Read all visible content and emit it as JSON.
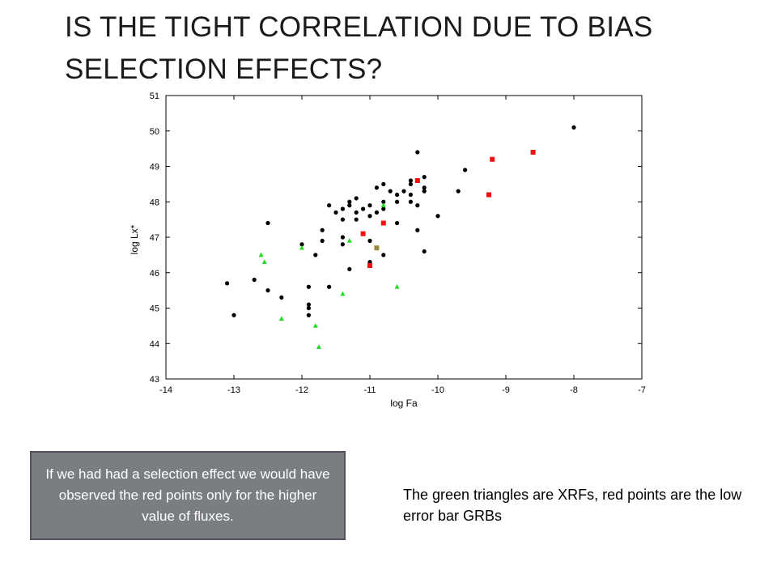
{
  "slide": {
    "title": "IS THE TIGHT CORRELATION DUE TO BIAS SELECTION EFFECTS?",
    "callout_text": "If we had had a selection effect we would have observed the red points only for the higher value of fluxes.",
    "note_text": "The green triangles are XRFs, red points are the low error bar GRBs"
  },
  "colors": {
    "black_points": "#000000",
    "red_points": "#ee1111",
    "green_points": "#22dd22",
    "olive_point": "#9a8a3a",
    "callout_bg": "#7a7d82"
  },
  "chart_data": {
    "type": "scatter",
    "title": "",
    "xlabel": "log Fa",
    "ylabel": "log Lx*",
    "xlim": [
      -14,
      -7
    ],
    "ylim": [
      43,
      51
    ],
    "xticks": [
      "-14",
      "-13",
      "-12",
      "-11",
      "-10",
      "-9",
      "-8",
      "-7"
    ],
    "yticks": [
      "43",
      "44",
      "45",
      "46",
      "47",
      "48",
      "49",
      "50",
      "51"
    ],
    "grid": false,
    "series": [
      {
        "marker": "circle",
        "color": "#000000",
        "points": [
          [
            -13.1,
            45.7
          ],
          [
            -13.0,
            44.8
          ],
          [
            -12.7,
            45.8
          ],
          [
            -12.5,
            45.5
          ],
          [
            -12.5,
            47.4
          ],
          [
            -12.3,
            45.3
          ],
          [
            -12.0,
            46.8
          ],
          [
            -11.9,
            45.6
          ],
          [
            -11.9,
            45.1
          ],
          [
            -11.9,
            45.0
          ],
          [
            -11.9,
            44.8
          ],
          [
            -11.8,
            46.5
          ],
          [
            -11.7,
            47.2
          ],
          [
            -11.7,
            46.9
          ],
          [
            -11.6,
            45.6
          ],
          [
            -11.6,
            47.9
          ],
          [
            -11.5,
            47.7
          ],
          [
            -11.4,
            47.8
          ],
          [
            -11.4,
            47.5
          ],
          [
            -11.4,
            47.0
          ],
          [
            -11.4,
            46.8
          ],
          [
            -11.3,
            47.9
          ],
          [
            -11.3,
            48.0
          ],
          [
            -11.3,
            46.1
          ],
          [
            -11.2,
            47.7
          ],
          [
            -11.2,
            47.5
          ],
          [
            -11.2,
            48.1
          ],
          [
            -11.1,
            47.8
          ],
          [
            -11.0,
            47.9
          ],
          [
            -11.0,
            47.6
          ],
          [
            -10.9,
            48.4
          ],
          [
            -10.9,
            47.7
          ],
          [
            -10.8,
            48.5
          ],
          [
            -10.8,
            48.0
          ],
          [
            -10.8,
            47.8
          ],
          [
            -10.8,
            46.5
          ],
          [
            -10.7,
            48.3
          ],
          [
            -10.6,
            48.2
          ],
          [
            -10.6,
            48.0
          ],
          [
            -10.6,
            47.4
          ],
          [
            -10.5,
            48.3
          ],
          [
            -10.4,
            48.6
          ],
          [
            -10.4,
            48.5
          ],
          [
            -10.4,
            48.2
          ],
          [
            -10.4,
            48.0
          ],
          [
            -10.3,
            49.4
          ],
          [
            -10.3,
            47.9
          ],
          [
            -10.3,
            47.2
          ],
          [
            -10.2,
            48.7
          ],
          [
            -10.2,
            48.4
          ],
          [
            -10.2,
            48.3
          ],
          [
            -10.2,
            46.6
          ],
          [
            -10.0,
            47.6
          ],
          [
            -9.7,
            48.3
          ],
          [
            -9.6,
            48.9
          ],
          [
            -11.0,
            46.9
          ],
          [
            -11.0,
            46.3
          ],
          [
            -8.0,
            50.1
          ]
        ]
      },
      {
        "marker": "square",
        "color": "#ee1111",
        "points": [
          [
            -11.1,
            47.1
          ],
          [
            -11.0,
            46.2
          ],
          [
            -10.8,
            47.4
          ],
          [
            -10.3,
            48.6
          ],
          [
            -9.2,
            49.2
          ],
          [
            -9.25,
            48.2
          ],
          [
            -8.6,
            49.4
          ]
        ]
      },
      {
        "marker": "square",
        "color": "#9a8a3a",
        "points": [
          [
            -10.9,
            46.7
          ]
        ]
      },
      {
        "marker": "triangle",
        "color": "#22dd22",
        "points": [
          [
            -12.6,
            46.5
          ],
          [
            -12.55,
            46.3
          ],
          [
            -12.3,
            44.7
          ],
          [
            -12.0,
            46.7
          ],
          [
            -11.8,
            44.5
          ],
          [
            -11.75,
            43.9
          ],
          [
            -11.4,
            45.4
          ],
          [
            -11.3,
            46.9
          ],
          [
            -10.8,
            47.9
          ],
          [
            -10.6,
            45.6
          ]
        ]
      }
    ]
  }
}
